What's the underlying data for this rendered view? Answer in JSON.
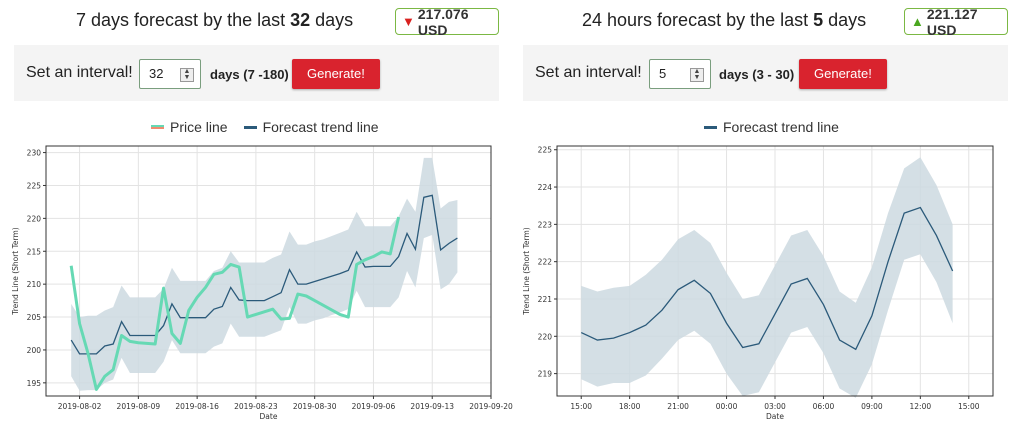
{
  "panels": [
    {
      "title_prefix": "7 days forecast by the last ",
      "title_num": "32",
      "title_suffix": " days",
      "price": "217.076 USD",
      "direction": "down",
      "interval_label": "Set an interval!",
      "interval_value": "32",
      "range_label": "days (7 -180)",
      "generate_label": "Generate!"
    },
    {
      "title_prefix": "24 hours forecast by the last ",
      "title_num": "5",
      "title_suffix": " days",
      "price": "221.127 USD",
      "direction": "up",
      "interval_label": "Set an interval!",
      "interval_value": "5",
      "range_label": "days (3 - 30)",
      "generate_label": "Generate!"
    }
  ],
  "colors": {
    "price_line": "#66d9b4",
    "price_legend": "#f08c70",
    "forecast": "#2b5a7a",
    "band": "#ccd9e1",
    "down": "#d9211f",
    "up": "#4aa71f",
    "button": "#d9232e"
  },
  "chart_data": [
    {
      "type": "line",
      "legend": [
        "Price line",
        "Forecast trend line"
      ],
      "xlabel": "Date",
      "ylabel": "Trend Line (Short Term)",
      "x_ticks": [
        "2019-08-02",
        "2019-08-09",
        "2019-08-16",
        "2019-08-23",
        "2019-08-30",
        "2019-09-06",
        "2019-09-13",
        "2019-09-20"
      ],
      "y_ticks": [
        195,
        200,
        205,
        210,
        215,
        220,
        225,
        230
      ],
      "xlim": [
        -3,
        50
      ],
      "ylim": [
        193,
        231
      ],
      "price_x": [
        0,
        1,
        2,
        3,
        4,
        5,
        6,
        7,
        8,
        9,
        10,
        11,
        12,
        13,
        14,
        15,
        16,
        17,
        18,
        19,
        20,
        21,
        22,
        23,
        24,
        25,
        26,
        27,
        28,
        29,
        30,
        31,
        32,
        33,
        34,
        35,
        36,
        37,
        38,
        39
      ],
      "price_y": [
        212.8,
        204.0,
        199.5,
        194.0,
        196.0,
        197.0,
        202.2,
        201.3,
        201.1,
        201.0,
        200.9,
        209.4,
        202.5,
        201.0,
        206.0,
        208.0,
        209.5,
        211.5,
        211.8,
        213.0,
        212.6,
        205.0,
        205.4,
        205.8,
        206.2,
        204.7,
        204.8,
        208.5,
        208.2,
        207.5,
        206.8,
        206.1,
        205.4,
        205.0,
        213.0,
        213.7,
        214.2,
        214.9,
        214.6,
        220.2
      ],
      "forecast_x": [
        0,
        1,
        2,
        3,
        4,
        5,
        6,
        7,
        8,
        9,
        10,
        11,
        12,
        13,
        14,
        15,
        16,
        17,
        18,
        19,
        20,
        21,
        22,
        23,
        24,
        25,
        26,
        27,
        28,
        29,
        30,
        31,
        32,
        33,
        34,
        35,
        36,
        37,
        38,
        39,
        40,
        41,
        42,
        43,
        44,
        45,
        46
      ],
      "forecast_y": [
        201.5,
        199.4,
        199.4,
        199.4,
        200.6,
        200.9,
        204.3,
        202.2,
        202.2,
        202.2,
        202.2,
        203.7,
        207.0,
        204.9,
        204.9,
        204.9,
        204.9,
        206.2,
        206.6,
        209.5,
        207.6,
        207.5,
        207.5,
        207.5,
        208.1,
        208.7,
        212.2,
        210.0,
        210.0,
        210.4,
        210.8,
        211.2,
        211.6,
        212.1,
        214.9,
        212.6,
        212.7,
        212.7,
        212.7,
        214.2,
        217.7,
        215.3,
        223.2,
        223.5,
        215.2,
        216.2,
        217.0
      ],
      "band_upper": [
        207.0,
        205.0,
        205.2,
        205.2,
        206.0,
        206.5,
        209.8,
        208.0,
        208.0,
        208.0,
        208.0,
        209.3,
        212.5,
        210.5,
        210.5,
        210.5,
        210.5,
        212.0,
        212.5,
        215.0,
        213.3,
        213.3,
        213.3,
        213.3,
        214.0,
        214.5,
        218.0,
        216.0,
        216.0,
        216.5,
        216.8,
        217.3,
        217.8,
        218.3,
        221.0,
        218.8,
        218.8,
        218.8,
        218.8,
        220.3,
        223.0,
        221.0,
        229.2,
        229.2,
        221.5,
        222.5,
        222.8
      ],
      "band_lower": [
        196.0,
        193.8,
        193.9,
        193.9,
        195.0,
        195.5,
        198.8,
        196.5,
        196.5,
        196.5,
        196.5,
        198.2,
        201.5,
        199.5,
        199.5,
        199.5,
        199.5,
        200.5,
        201.0,
        204.0,
        202.0,
        202.0,
        202.0,
        202.0,
        202.5,
        203.0,
        206.5,
        204.0,
        204.0,
        204.5,
        204.8,
        205.3,
        205.7,
        206.2,
        209.0,
        206.5,
        206.5,
        206.5,
        206.5,
        208.0,
        212.0,
        209.5,
        217.0,
        217.5,
        209.2,
        210.0,
        211.8
      ]
    },
    {
      "type": "line",
      "legend": [
        "Forecast trend line"
      ],
      "xlabel": "Date",
      "ylabel": "Trend Line (Short Term)",
      "x_ticks": [
        "15:00",
        "18:00",
        "21:00",
        "00:00",
        "03:00",
        "06:00",
        "09:00",
        "12:00",
        "15:00"
      ],
      "y_ticks": [
        219,
        220,
        221,
        222,
        223,
        224,
        225
      ],
      "xlim": [
        -1.5,
        25.5
      ],
      "ylim": [
        218.4,
        225.1
      ],
      "forecast_x": [
        0,
        1,
        2,
        3,
        4,
        5,
        6,
        7,
        8,
        9,
        10,
        11,
        12,
        13,
        14,
        15,
        16,
        17,
        18,
        19,
        20,
        21,
        22,
        23
      ],
      "forecast_y": [
        220.1,
        219.9,
        219.95,
        220.1,
        220.3,
        220.7,
        221.25,
        221.5,
        221.15,
        220.35,
        219.7,
        219.8,
        220.6,
        221.4,
        221.55,
        220.85,
        219.9,
        219.65,
        220.55,
        222.0,
        223.3,
        223.45,
        222.7,
        221.75
      ],
      "band_upper": [
        221.35,
        221.2,
        221.3,
        221.35,
        221.65,
        222.05,
        222.6,
        222.85,
        222.5,
        221.7,
        221.0,
        221.1,
        221.9,
        222.7,
        222.85,
        222.15,
        221.2,
        220.9,
        221.85,
        223.3,
        224.5,
        224.8,
        224.05,
        223.0
      ],
      "band_lower": [
        218.85,
        218.65,
        218.75,
        218.75,
        218.95,
        219.4,
        219.9,
        220.15,
        219.8,
        219.0,
        218.4,
        218.5,
        219.3,
        220.1,
        220.25,
        219.55,
        218.6,
        218.35,
        219.25,
        220.7,
        222.05,
        222.2,
        221.45,
        220.35
      ]
    }
  ]
}
